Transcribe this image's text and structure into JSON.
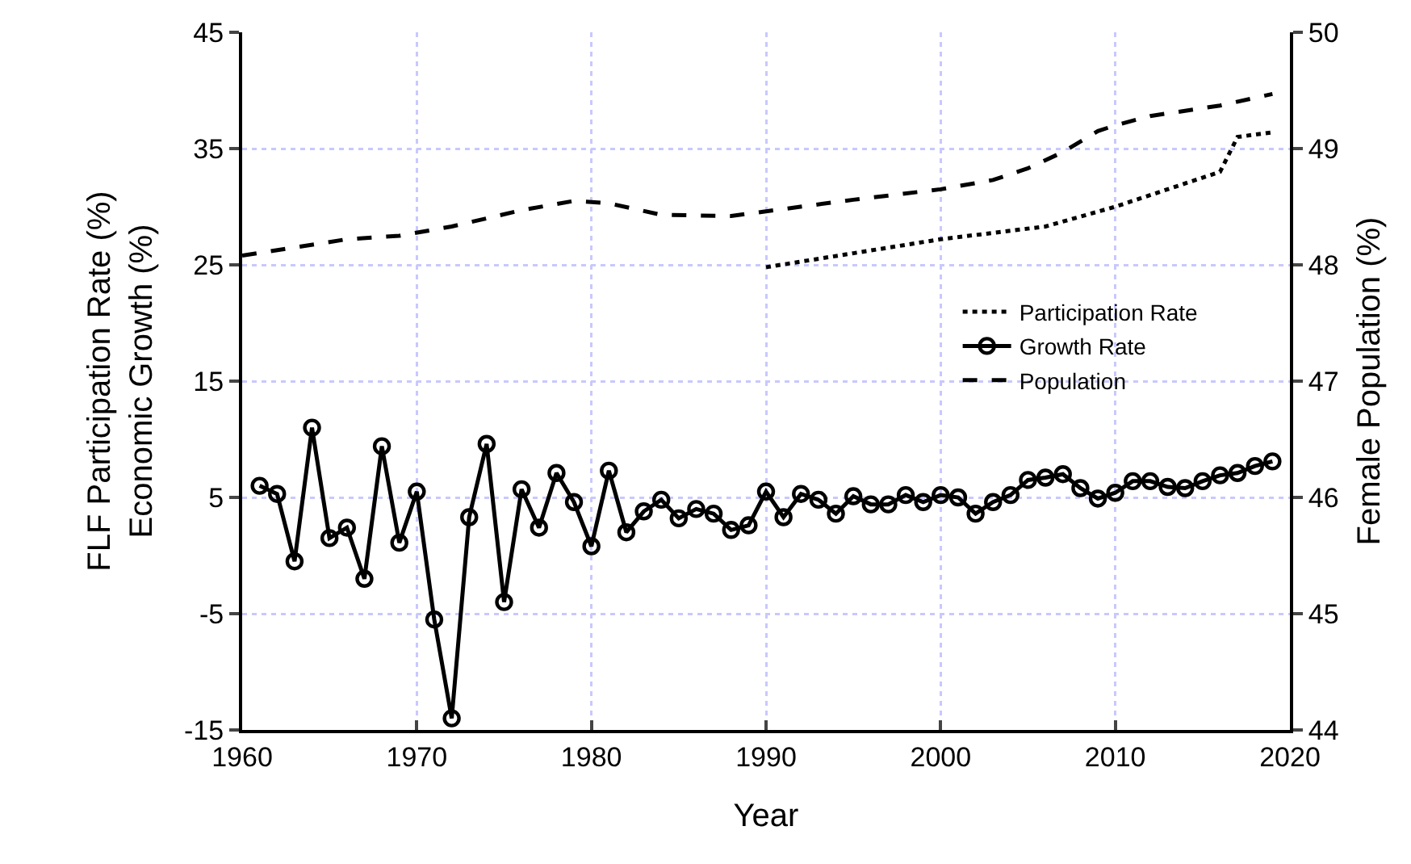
{
  "chart_data": {
    "type": "line",
    "xlabel": "Year",
    "ylabel": "FLF Participation Rate (%)\nEconomic Growth (%)",
    "y2label": "Female Population (%)",
    "xlim": [
      1960,
      2020
    ],
    "xticks": [
      1960,
      1970,
      1980,
      1990,
      2000,
      2010,
      2020
    ],
    "ylim": [
      -15,
      45
    ],
    "yticks": [
      -15,
      -5,
      5,
      15,
      25,
      35,
      45
    ],
    "y2lim": [
      44,
      50
    ],
    "y2ticks": [
      44,
      45,
      46,
      47,
      48,
      49,
      50
    ],
    "grid": true,
    "legend": "right",
    "series": [
      {
        "name": "Participation Rate",
        "color": "#000000",
        "line_style": "dotted",
        "marker": "none",
        "x": [
          1990,
          1995,
          2000,
          2006,
          2010,
          2016,
          2017,
          2019
        ],
        "values": [
          24.8,
          26.0,
          27.2,
          28.3,
          30.0,
          33.0,
          36.0,
          36.4
        ]
      },
      {
        "name": "Growth Rate",
        "color": "#000000",
        "line_style": "solid",
        "marker": "circle",
        "x": [
          1961,
          1962,
          1963,
          1964,
          1965,
          1966,
          1967,
          1968,
          1969,
          1970,
          1971,
          1972,
          1973,
          1974,
          1975,
          1976,
          1977,
          1978,
          1979,
          1980,
          1981,
          1982,
          1983,
          1984,
          1985,
          1986,
          1987,
          1988,
          1989,
          1990,
          1991,
          1992,
          1993,
          1994,
          1995,
          1996,
          1997,
          1998,
          1999,
          2000,
          2001,
          2002,
          2003,
          2004,
          2005,
          2006,
          2007,
          2008,
          2009,
          2010,
          2011,
          2012,
          2013,
          2014,
          2015,
          2016,
          2017,
          2018,
          2019
        ],
        "values": [
          6,
          5.3,
          -0.5,
          11,
          1.5,
          2.4,
          -2,
          9.4,
          1.1,
          5.5,
          -5.5,
          -14,
          3.3,
          9.6,
          -4,
          5.7,
          2.4,
          7.1,
          4.6,
          0.8,
          7.3,
          2,
          3.8,
          4.8,
          3.2,
          4,
          3.6,
          2.2,
          2.6,
          5.5,
          3.3,
          5.3,
          4.8,
          3.6,
          5.1,
          4.4,
          4.4,
          5.2,
          4.6,
          5.2,
          5,
          3.6,
          4.6,
          5.2,
          6.5,
          6.7,
          7,
          5.8,
          4.9,
          5.4,
          6.4,
          6.4,
          5.9,
          5.8,
          6.4,
          6.9,
          7.1,
          7.7,
          8.1
        ]
      },
      {
        "name": "Population",
        "color": "#000000",
        "line_style": "dashed",
        "marker": "none",
        "axis": "y2",
        "x": [
          1960,
          1963,
          1966,
          1969,
          1972,
          1976,
          1979,
          1981,
          1984,
          1988,
          1991,
          1995,
          2000,
          2003,
          2005,
          2007,
          2009,
          2010,
          2012,
          2016,
          2019
        ],
        "values": [
          48.08,
          48.15,
          48.22,
          48.25,
          48.33,
          48.47,
          48.55,
          48.53,
          48.43,
          48.42,
          48.48,
          48.56,
          48.65,
          48.73,
          48.83,
          48.97,
          49.15,
          49.2,
          49.28,
          49.37,
          49.47
        ]
      }
    ]
  }
}
